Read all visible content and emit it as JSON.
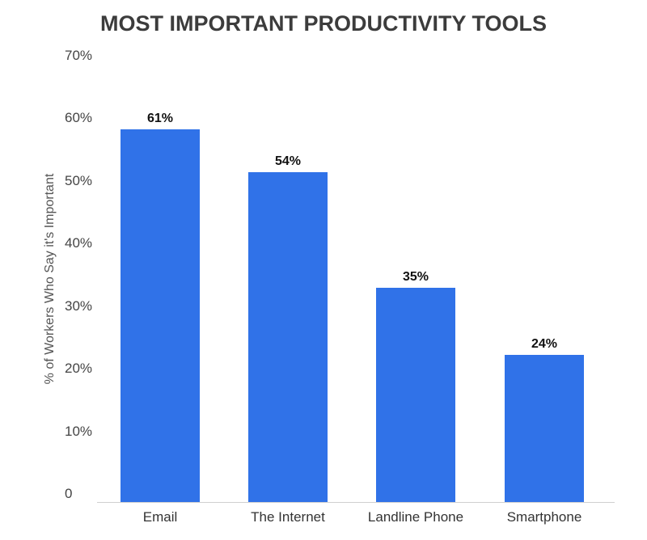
{
  "chart_data": {
    "type": "bar",
    "title": "MOST IMPORTANT PRODUCTIVITY TOOLS",
    "xlabel": "",
    "ylabel": "% of Workers Who Say it's Important",
    "categories": [
      "Email",
      "The Internet",
      "Landline Phone",
      "Smartphone"
    ],
    "values": [
      61,
      54,
      35,
      24
    ],
    "value_labels": [
      "61%",
      "54%",
      "35%",
      "24%"
    ],
    "ylim": [
      0,
      70
    ],
    "yticks": [
      "0",
      "10%",
      "20%",
      "30%",
      "40%",
      "50%",
      "60%",
      "70%"
    ],
    "grid": false,
    "legend": null,
    "bar_color": "#3072e8"
  }
}
